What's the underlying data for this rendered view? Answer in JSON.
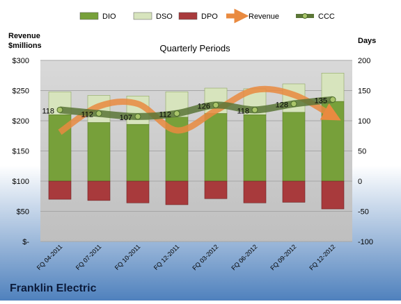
{
  "chart_data": {
    "type": "bar",
    "title": "Quarterly Periods",
    "company": "Franklin Electric",
    "left_axis_label_line1": "Revenue",
    "left_axis_label_line2": "$millions",
    "right_axis_label": "Days",
    "left_ylim": [
      0,
      300
    ],
    "right_ylim": [
      -100,
      200
    ],
    "left_ticks": [
      "$-",
      "$50",
      "$100",
      "$150",
      "$200",
      "$250",
      "$300"
    ],
    "right_ticks": [
      "-100",
      "-50",
      "0",
      "50",
      "100",
      "150",
      "200"
    ],
    "categories": [
      "FQ 04-2011",
      "FQ 07-2011",
      "FQ 10-2011",
      "FQ 12-2011",
      "FQ 03-2012",
      "FQ 06-2012",
      "FQ 09-2012",
      "FQ 12-2012"
    ],
    "legend_position": "top",
    "grid": true,
    "series": [
      {
        "name": "DIO",
        "axis": "right",
        "kind": "bar",
        "color": "#77a03a",
        "values": [
          110,
          97,
          94,
          106,
          112,
          110,
          114,
          132
        ]
      },
      {
        "name": "DSO",
        "axis": "right",
        "kind": "bar",
        "color": "#d7e4bd",
        "values": [
          38,
          45,
          47,
          42,
          42,
          43,
          47,
          47
        ]
      },
      {
        "name": "DPO",
        "axis": "right",
        "kind": "bar",
        "color": "#a83a3c",
        "values": [
          -30,
          -32,
          -36,
          -39,
          -29,
          -36,
          -35,
          -46
        ]
      },
      {
        "name": "Revenue",
        "axis": "left",
        "kind": "line",
        "color": "#e98a40",
        "values": [
          181,
          224,
          228,
          184,
          217,
          251,
          243,
          208
        ]
      },
      {
        "name": "CCC",
        "axis": "right",
        "kind": "line",
        "color": "#5b7637",
        "values": [
          118,
          112,
          107,
          112,
          126,
          118,
          128,
          135
        ]
      }
    ],
    "ccc_labels": [
      "118",
      "112",
      "107",
      "112",
      "126",
      "118",
      "128",
      "135"
    ]
  }
}
